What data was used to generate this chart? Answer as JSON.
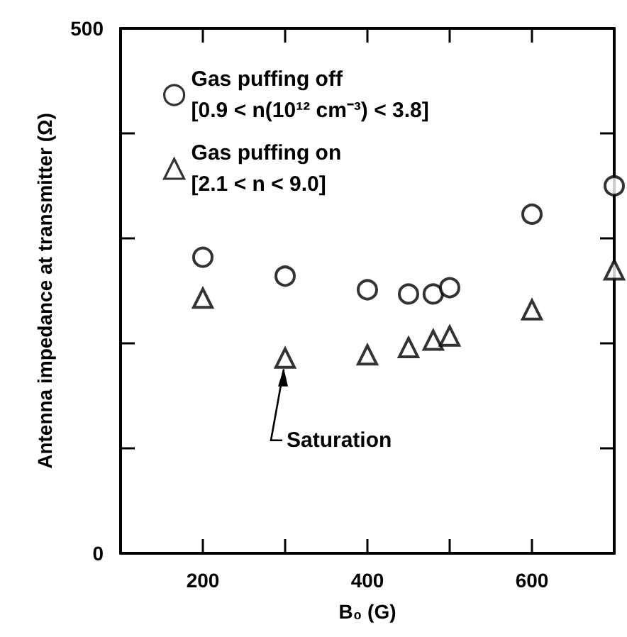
{
  "chart_data": {
    "type": "scatter",
    "xlabel": "B₀ (G)",
    "ylabel": "Antenna impedance at transmitter (Ω)",
    "x": [
      200,
      300,
      400,
      450,
      480,
      500,
      600,
      700
    ],
    "series": [
      {
        "name": "Gas puffing off\n[0.9 < n(10¹² cm⁻³) < 3.8]",
        "color": "#000000",
        "marker": "circle",
        "values": [
          282,
          264,
          251,
          247,
          247,
          253,
          323,
          350
        ]
      },
      {
        "name": "Gas puffing on\n[2.1 < n < 9.0]",
        "color": "#000000",
        "marker": "triangle",
        "values": [
          243,
          186,
          189,
          196,
          203,
          207,
          232,
          270
        ]
      }
    ],
    "xlim": [
      100,
      700
    ],
    "xticks": [
      200,
      {
        "value": 300,
        "label": null
      },
      400,
      {
        "value": 500,
        "label": null
      },
      600
    ],
    "ylim": [
      0,
      500
    ],
    "yticks": [
      0,
      {
        "value": 100,
        "label": null
      },
      {
        "value": 200,
        "label": null
      },
      {
        "value": 300,
        "label": null
      },
      {
        "value": 400,
        "label": null
      },
      500
    ],
    "annotations": [
      {
        "text": "Saturation",
        "x": 300,
        "y": 186
      }
    ],
    "legend": "top left",
    "grid": false
  }
}
